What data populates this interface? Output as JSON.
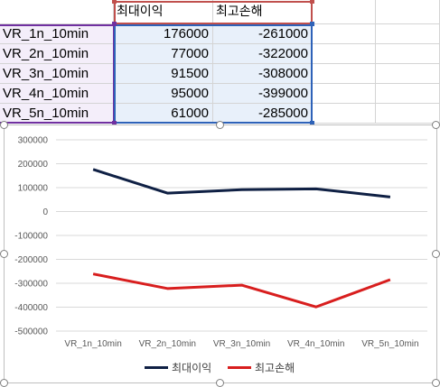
{
  "table": {
    "headers": [
      "최대이익",
      "최고손해"
    ],
    "rows": [
      {
        "name": "VR_1n_10min",
        "max_profit": "176000",
        "max_loss": "-261000"
      },
      {
        "name": "VR_2n_10min",
        "max_profit": "77000",
        "max_loss": "-322000"
      },
      {
        "name": "VR_3n_10min",
        "max_profit": "91500",
        "max_loss": "-308000"
      },
      {
        "name": "VR_4n_10min",
        "max_profit": "95000",
        "max_loss": "-399000"
      },
      {
        "name": "VR_5n_10min",
        "max_profit": "61000",
        "max_loss": "-285000"
      }
    ]
  },
  "colors": {
    "series1": "#0f2044",
    "series2": "#d81e1e",
    "range_purple": "#7030a0",
    "range_blue": "#2e62b8",
    "range_red": "#c0504d"
  },
  "chart_data": {
    "type": "line",
    "categories": [
      "VR_1n_10min",
      "VR_2n_10min",
      "VR_3n_10min",
      "VR_4n_10min",
      "VR_5n_10min"
    ],
    "series": [
      {
        "name": "최대이익",
        "values": [
          176000,
          77000,
          91500,
          95000,
          61000
        ]
      },
      {
        "name": "최고손해",
        "values": [
          -261000,
          -322000,
          -308000,
          -399000,
          -285000
        ]
      }
    ],
    "ylim": [
      -500000,
      300000
    ],
    "yticks": [
      "300000",
      "200000",
      "100000",
      "0",
      "-100000",
      "-200000",
      "-300000",
      "-400000",
      "-500000"
    ],
    "grid": true,
    "legend": "bottom"
  }
}
